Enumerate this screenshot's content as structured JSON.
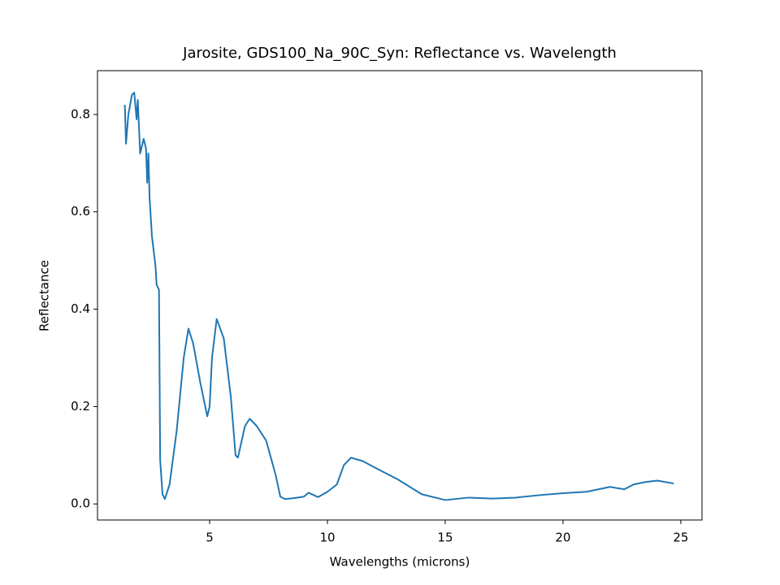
{
  "chart_data": {
    "type": "line",
    "title": "Jarosite, GDS100_Na_90C_Syn: Reflectance vs. Wavelength",
    "xlabel": "Wavelengths (microns)",
    "ylabel": "Reflectance",
    "xlim": [
      0.24,
      25.9
    ],
    "ylim": [
      -0.033,
      0.89
    ],
    "xticks": [
      5,
      10,
      15,
      20,
      25
    ],
    "yticks": [
      {
        "value": 0,
        "label": "0.0"
      },
      0.2,
      0.4,
      0.6,
      0.8
    ],
    "grid": false,
    "series": [
      {
        "name": "Reflectance",
        "color": "#1f77b4",
        "x": [
          1.4,
          1.45,
          1.55,
          1.7,
          1.8,
          1.9,
          1.95,
          2.05,
          2.2,
          2.3,
          2.35,
          2.4,
          2.45,
          2.55,
          2.7,
          2.75,
          2.85,
          2.9,
          3.0,
          3.1,
          3.3,
          3.6,
          3.9,
          4.1,
          4.3,
          4.6,
          4.9,
          5.0,
          5.1,
          5.3,
          5.6,
          5.9,
          6.1,
          6.2,
          6.5,
          6.7,
          7.0,
          7.4,
          7.8,
          8.0,
          8.2,
          8.6,
          9.0,
          9.2,
          9.6,
          10.0,
          10.4,
          10.7,
          11.0,
          11.5,
          12.0,
          13.0,
          14.0,
          15.0,
          16.0,
          17.0,
          18.0,
          19.0,
          20.0,
          21.0,
          22.0,
          22.6,
          23.0,
          23.5,
          24.0,
          24.7
        ],
        "values": [
          0.82,
          0.74,
          0.8,
          0.84,
          0.845,
          0.79,
          0.83,
          0.72,
          0.75,
          0.73,
          0.66,
          0.72,
          0.63,
          0.55,
          0.49,
          0.45,
          0.44,
          0.09,
          0.02,
          0.01,
          0.04,
          0.15,
          0.3,
          0.36,
          0.33,
          0.25,
          0.18,
          0.2,
          0.3,
          0.38,
          0.34,
          0.22,
          0.1,
          0.095,
          0.16,
          0.175,
          0.16,
          0.13,
          0.06,
          0.015,
          0.01,
          0.012,
          0.015,
          0.023,
          0.014,
          0.025,
          0.04,
          0.08,
          0.095,
          0.088,
          0.075,
          0.05,
          0.02,
          0.008,
          0.013,
          0.011,
          0.013,
          0.018,
          0.022,
          0.025,
          0.035,
          0.03,
          0.04,
          0.045,
          0.048,
          0.042
        ]
      }
    ]
  }
}
